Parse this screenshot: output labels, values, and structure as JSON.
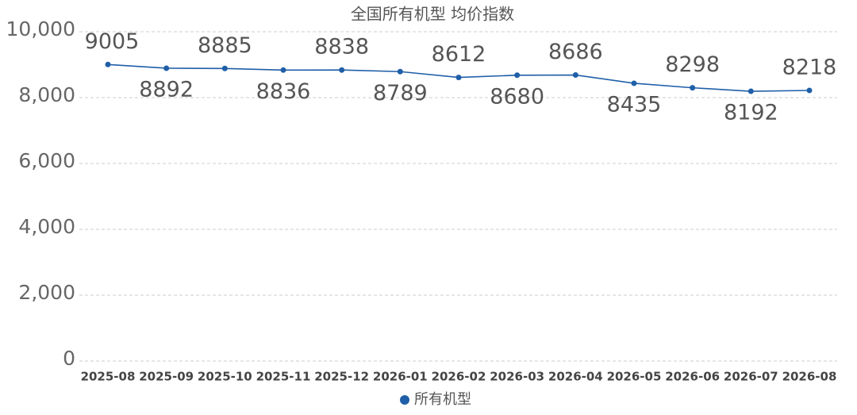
{
  "chart_data": {
    "type": "line",
    "title": "全国所有机型 均价指数",
    "categories": [
      "2025-08",
      "2025-09",
      "2025-10",
      "2025-11",
      "2025-12",
      "2026-01",
      "2026-02",
      "2026-03",
      "2026-04",
      "2026-05",
      "2026-06",
      "2026-07",
      "2026-08"
    ],
    "series": [
      {
        "name": "所有机型",
        "color": "#1f5fa8",
        "values": [
          9005,
          8892,
          8885,
          8836,
          8838,
          8789,
          8612,
          8680,
          8686,
          8435,
          8298,
          8192,
          8218
        ]
      }
    ],
    "ylim": [
      0,
      10000
    ],
    "yticks": [
      0,
      {
        "value": 2000,
        "label": "2,000"
      },
      {
        "value": 4000,
        "label": "4,000"
      },
      {
        "value": 6000,
        "label": "6,000"
      },
      {
        "value": 8000,
        "label": "8,000"
      },
      {
        "value": 10000,
        "label": "10,000"
      }
    ],
    "grid": true,
    "legend": "bottom"
  }
}
